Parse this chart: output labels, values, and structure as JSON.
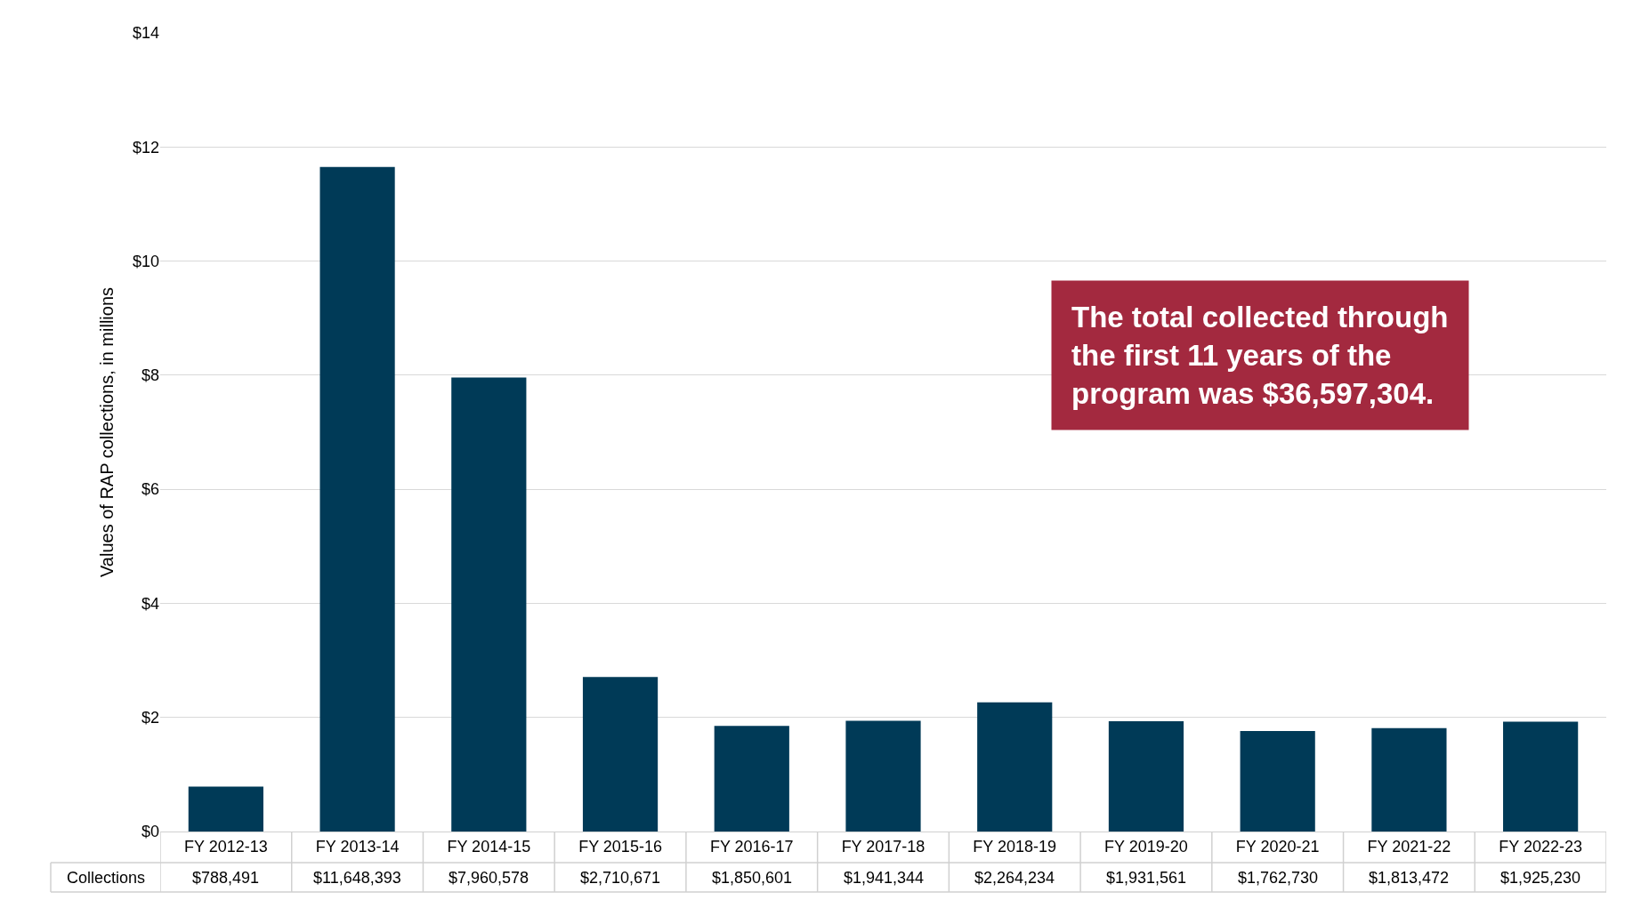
{
  "chart_data": {
    "type": "bar",
    "ylabel": "Values of RAP collections, in millions",
    "categories": [
      "FY 2012-13",
      "FY 2013-14",
      "FY 2014-15",
      "FY 2015-16",
      "FY 2016-17",
      "FY 2017-18",
      "FY 2018-19",
      "FY 2019-20",
      "FY 2020-21",
      "FY 2021-22",
      "FY 2022-23"
    ],
    "series": [
      {
        "name": "Collections",
        "color": "#003a57",
        "values": [
          0.788491,
          11.648393,
          7.960578,
          2.710671,
          1.850601,
          1.941344,
          2.264234,
          1.931561,
          1.76273,
          1.813472,
          1.92523
        ]
      }
    ],
    "ylim": [
      0,
      14
    ],
    "yticks": [
      {
        "value": 0,
        "label": "$0"
      },
      {
        "value": 2,
        "label": "$2"
      },
      {
        "value": 4,
        "label": "$4"
      },
      {
        "value": 6,
        "label": "$6"
      },
      {
        "value": 8,
        "label": "$8"
      },
      {
        "value": 10,
        "label": "$10"
      },
      {
        "value": 12,
        "label": "$12"
      },
      {
        "value": 14,
        "label": "$14"
      }
    ],
    "grid": "y",
    "legend": false,
    "annotations": [
      "The total collected through the first 11 years of the program was $36,597,304.",
      "$788,491",
      "$11,648,393",
      "$7,960,578",
      "$2,710,671",
      "$1,850,601",
      "$1,941,344",
      "$2,264,234",
      "$1,931,561",
      "$1,762,730",
      "$1,813,472",
      "$1,925,230"
    ]
  }
}
